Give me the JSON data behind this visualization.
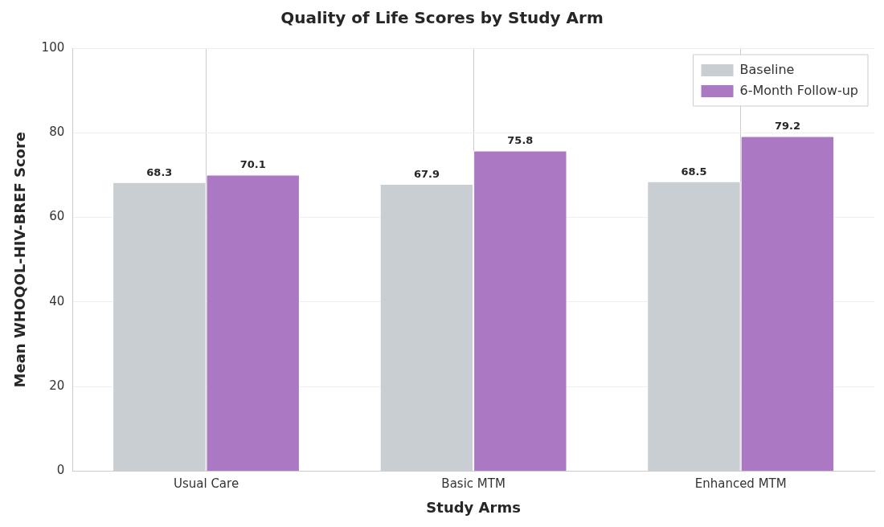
{
  "chart_data": {
    "type": "bar",
    "title": "Quality of Life Scores by Study Arm",
    "xlabel": "Study Arms",
    "ylabel": "Mean WHOQOL-HIV-BREF Score",
    "categories": [
      "Usual Care",
      "Basic MTM",
      "Enhanced MTM"
    ],
    "series": [
      {
        "name": "Baseline",
        "color": "#c8ced1",
        "values": [
          68.3,
          67.9,
          68.5
        ]
      },
      {
        "name": "6-Month Follow-up",
        "color": "#ab79c3",
        "values": [
          70.1,
          75.8,
          79.2
        ]
      }
    ],
    "ylim": [
      0,
      100
    ],
    "yticks": [
      0,
      20,
      40,
      60,
      80,
      100
    ],
    "grid": true,
    "legend": "top right",
    "data_labels": true
  }
}
